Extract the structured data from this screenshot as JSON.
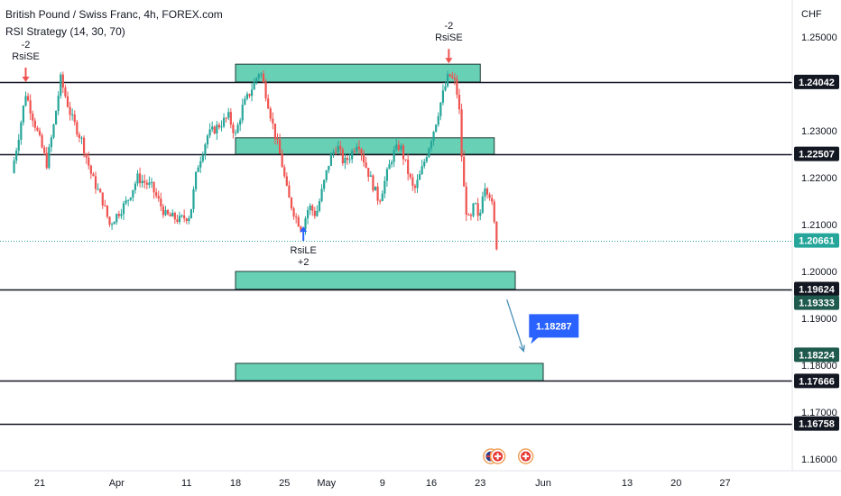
{
  "header": {
    "title": "British Pound / Swiss Franc, 4h, FOREX.com",
    "indicator": "RSI Strategy (14, 30, 70)"
  },
  "colors": {
    "zone_fill": "#4ec9a8",
    "bull": "#26a69a",
    "bear": "#ef5350",
    "line": "#131722",
    "current_price": "#26a69a",
    "callout": "#2962ff",
    "arrow": "#4a90b8"
  },
  "chart_data": {
    "type": "candlestick",
    "symbol": "British Pound / Swiss Franc",
    "timeframe": "4h",
    "source": "FOREX.com",
    "currency_label": "CHF",
    "ylim": [
      1.156,
      1.254
    ],
    "y_ticks": [
      "1.25000",
      "1.23000",
      "1.22000",
      "1.21000",
      "1.20000",
      "1.19000",
      "1.18000",
      "1.17000",
      "1.16000"
    ],
    "x_ticks": [
      {
        "label": "21",
        "day": 21
      },
      {
        "label": "Apr",
        "day": 32
      },
      {
        "label": "11",
        "day": 42
      },
      {
        "label": "18",
        "day": 49
      },
      {
        "label": "25",
        "day": 56
      },
      {
        "label": "May",
        "day": 62
      },
      {
        "label": "9",
        "day": 70
      },
      {
        "label": "16",
        "day": 77
      },
      {
        "label": "23",
        "day": 84
      },
      {
        "label": "Jun",
        "day": 93
      },
      {
        "label": "13",
        "day": 105
      },
      {
        "label": "20",
        "day": 112
      },
      {
        "label": "27",
        "day": 119
      }
    ],
    "price_path": [
      [
        17.0,
        1.221
      ],
      [
        18.0,
        1.229
      ],
      [
        19.0,
        1.238
      ],
      [
        20.0,
        1.233
      ],
      [
        21.0,
        1.228
      ],
      [
        22.0,
        1.223
      ],
      [
        23.0,
        1.231
      ],
      [
        24.0,
        1.241
      ],
      [
        25.5,
        1.233
      ],
      [
        27.0,
        1.228
      ],
      [
        28.5,
        1.22
      ],
      [
        30.0,
        1.215
      ],
      [
        31.0,
        1.21
      ],
      [
        32.0,
        1.212
      ],
      [
        33.5,
        1.215
      ],
      [
        35.0,
        1.22
      ],
      [
        37.0,
        1.218
      ],
      [
        39.0,
        1.212
      ],
      [
        41.0,
        1.211
      ],
      [
        42.5,
        1.212
      ],
      [
        43.5,
        1.222
      ],
      [
        45.0,
        1.229
      ],
      [
        46.5,
        1.231
      ],
      [
        48.0,
        1.233
      ],
      [
        49.0,
        1.229
      ],
      [
        50.0,
        1.235
      ],
      [
        51.0,
        1.238
      ],
      [
        52.5,
        1.243
      ],
      [
        53.5,
        1.237
      ],
      [
        54.5,
        1.23
      ],
      [
        55.5,
        1.224
      ],
      [
        56.5,
        1.216
      ],
      [
        57.5,
        1.212
      ],
      [
        58.5,
        1.209
      ],
      [
        59.5,
        1.214
      ],
      [
        60.5,
        1.212
      ],
      [
        61.5,
        1.218
      ],
      [
        62.5,
        1.224
      ],
      [
        63.5,
        1.227
      ],
      [
        64.5,
        1.223
      ],
      [
        65.5,
        1.225
      ],
      [
        66.5,
        1.228
      ],
      [
        67.5,
        1.223
      ],
      [
        68.5,
        1.219
      ],
      [
        69.5,
        1.215
      ],
      [
        70.5,
        1.22
      ],
      [
        71.5,
        1.225
      ],
      [
        72.5,
        1.227
      ],
      [
        73.5,
        1.222
      ],
      [
        74.5,
        1.217
      ],
      [
        75.5,
        1.221
      ],
      [
        76.5,
        1.226
      ],
      [
        77.5,
        1.231
      ],
      [
        78.5,
        1.237
      ],
      [
        79.5,
        1.242
      ],
      [
        80.5,
        1.24
      ],
      [
        81.0,
        1.234
      ],
      [
        81.5,
        1.22
      ],
      [
        82.0,
        1.213
      ],
      [
        82.5,
        1.21
      ],
      [
        83.2,
        1.215
      ],
      [
        83.8,
        1.21
      ],
      [
        84.5,
        1.219
      ],
      [
        85.5,
        1.216
      ],
      [
        86.0,
        1.21
      ],
      [
        86.6,
        1.202
      ]
    ],
    "horizontal_levels": [
      {
        "label": "1.24042",
        "value": 1.24042
      },
      {
        "label": "1.22507",
        "value": 1.22507
      },
      {
        "label": "1.19624",
        "value": 1.19624
      },
      {
        "label": "1.17666",
        "value": 1.17666
      },
      {
        "label": "1.16758",
        "value": 1.16758
      }
    ],
    "current_price": {
      "label": "1.20661",
      "value": 1.20661
    },
    "extra_labels": [
      {
        "label": "1.19333",
        "value": 1.19333
      },
      {
        "label": "1.18224",
        "value": 1.18224
      }
    ],
    "zones": [
      {
        "from_day": 49,
        "to_day": 84,
        "low": 1.2404,
        "high": 1.2442
      },
      {
        "from_day": 49,
        "to_day": 86,
        "low": 1.225,
        "high": 1.2285
      },
      {
        "from_day": 49,
        "to_day": 89,
        "low": 1.1962,
        "high": 1.2
      },
      {
        "from_day": 49,
        "to_day": 93,
        "low": 1.1767,
        "high": 1.1804
      }
    ],
    "signals": [
      {
        "type": "short",
        "text_top": "-2",
        "text_bottom": "RsiSE",
        "day": 19,
        "price": 1.24
      },
      {
        "type": "short",
        "text_top": "-2",
        "text_bottom": "RsiSE",
        "day": 79.5,
        "price": 1.244
      },
      {
        "type": "long",
        "text_top": "RsiLE",
        "text_bottom": "+2",
        "day": 58.7,
        "price": 1.21
      }
    ],
    "projection": {
      "target_label": "1.18287",
      "from_day": 87.8,
      "from_price": 1.194,
      "to_day": 90.2,
      "to_price": 1.183
    },
    "event_markers": [
      {
        "icon": "uk-flag-icon",
        "day": 85.5
      },
      {
        "icon": "swiss-flag-icon",
        "day": 86.5
      },
      {
        "icon": "swiss-flag-icon",
        "day": 90.5
      }
    ]
  }
}
